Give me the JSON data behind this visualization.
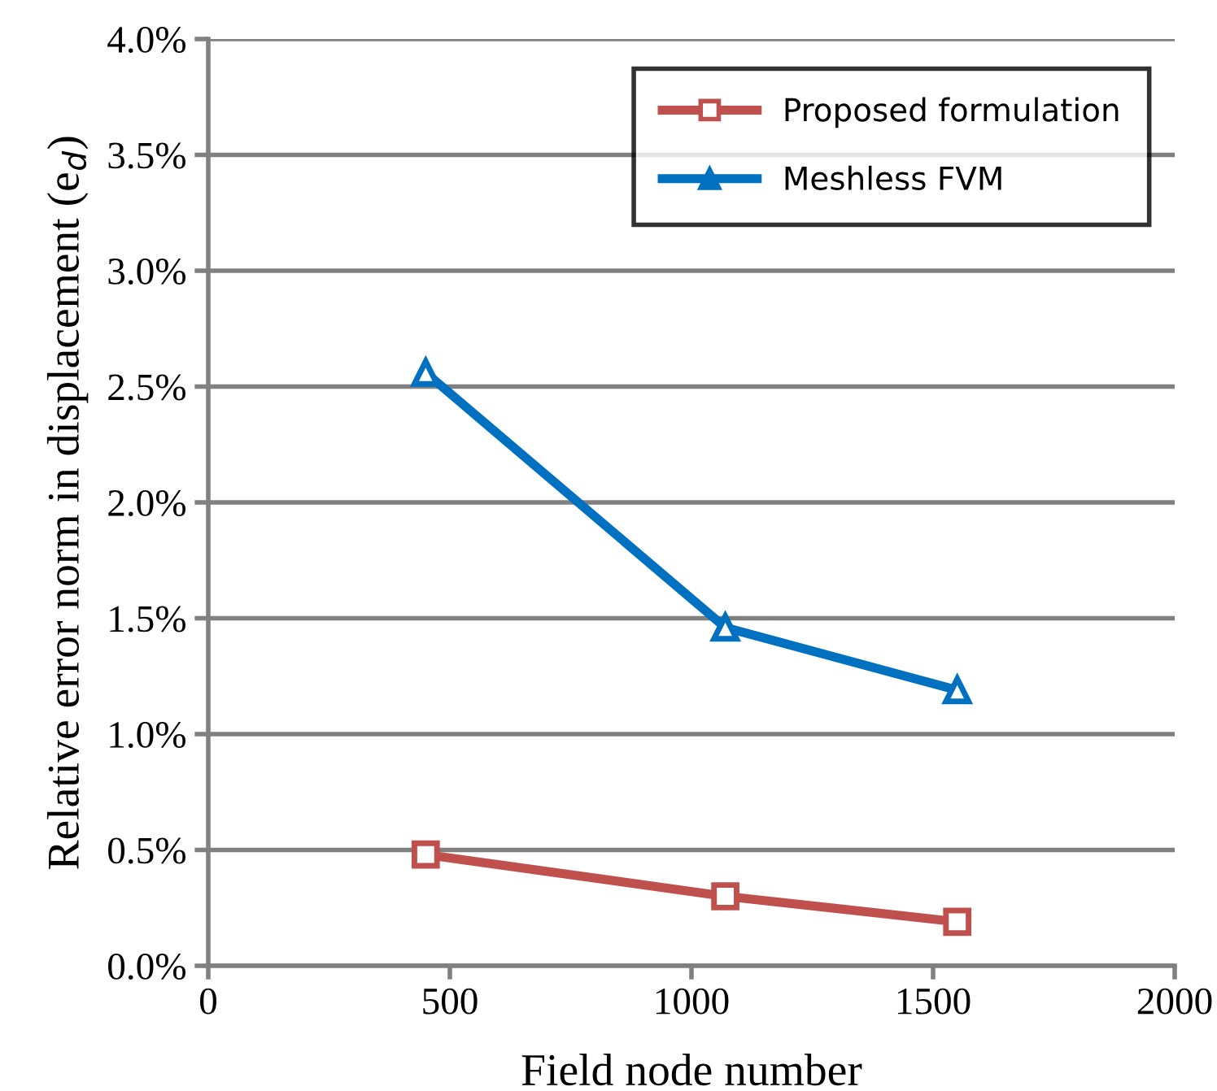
{
  "chart_data": {
    "type": "line",
    "xlabel": "Field node number",
    "ylabel": "Relative error norm in displacement (e$_{d}$)",
    "x": [
      450,
      1070,
      1550
    ],
    "series": [
      {
        "name": "Proposed formulation",
        "color": "#c0504d",
        "marker": "square",
        "values": [
          0.48,
          0.3,
          0.19
        ]
      },
      {
        "name": "Meshless FVM",
        "color": "#0070c0",
        "marker": "triangle",
        "values": [
          2.56,
          1.46,
          1.19
        ]
      }
    ],
    "xlim": [
      0,
      2000
    ],
    "xticks": [
      0,
      500,
      1000,
      1500,
      2000
    ],
    "ylim": [
      0,
      4
    ],
    "yticks": [
      {
        "value": 0,
        "label": "0.0%"
      },
      {
        "value": 0.5,
        "label": "0.5%"
      },
      {
        "value": 1,
        "label": "1.0%"
      },
      {
        "value": 1.5,
        "label": "1.5%"
      },
      {
        "value": 2,
        "label": "2.0%"
      },
      {
        "value": 2.5,
        "label": "2.5%"
      },
      {
        "value": 3,
        "label": "3.0%"
      },
      {
        "value": 3.5,
        "label": "3.5%"
      },
      {
        "value": 4,
        "label": "4.0%"
      }
    ],
    "grid": "y",
    "legend": "top right",
    "line_style": "solid"
  }
}
